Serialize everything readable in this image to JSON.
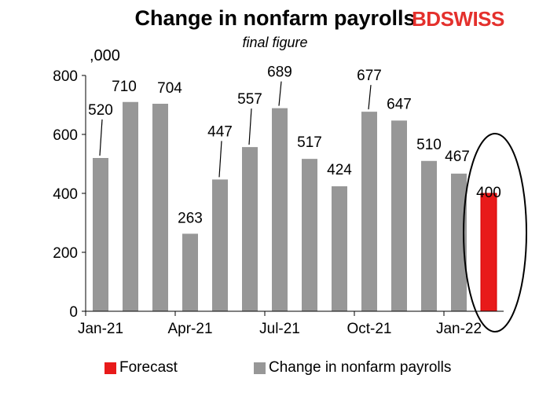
{
  "title": "Change in nonfarm payrolls",
  "subtitle": "final figure",
  "logo": {
    "part1": "BD",
    "part2": "SWISS"
  },
  "unit_label": ",000",
  "colors": {
    "actual": "#979797",
    "forecast": "#e81a1a",
    "axis": "#000000"
  },
  "legend": [
    {
      "label": "Forecast",
      "color": "#e81a1a"
    },
    {
      "label": "Change in nonfarm payrolls",
      "color": "#979797"
    }
  ],
  "chart_data": {
    "type": "bar",
    "categories": [
      "Jan-21",
      "Feb-21",
      "Mar-21",
      "Apr-21",
      "May-21",
      "Jun-21",
      "Jul-21",
      "Aug-21",
      "Sep-21",
      "Oct-21",
      "Nov-21",
      "Dec-21",
      "Jan-22",
      "Feb-22"
    ],
    "x_tick_labels": [
      "Jan-21",
      "Apr-21",
      "Jul-21",
      "Oct-21",
      "Jan-22"
    ],
    "series": [
      {
        "name": "Change in nonfarm payrolls",
        "values": [
          520,
          710,
          704,
          263,
          447,
          557,
          689,
          517,
          424,
          677,
          647,
          510,
          467,
          null
        ]
      },
      {
        "name": "Forecast",
        "values": [
          null,
          null,
          null,
          null,
          null,
          null,
          null,
          null,
          null,
          null,
          null,
          null,
          null,
          400
        ]
      }
    ],
    "data_labels": [
      "520",
      "710",
      "704",
      "263",
      "447",
      "557",
      "689",
      "517",
      "424",
      "677",
      "647",
      "510",
      "467",
      "400"
    ],
    "ylim": [
      0,
      800
    ],
    "yticks": [
      0,
      200,
      400,
      600,
      800
    ],
    "grid": false,
    "legend_position": "bottom",
    "annotation": "ellipse around forecast bar"
  }
}
